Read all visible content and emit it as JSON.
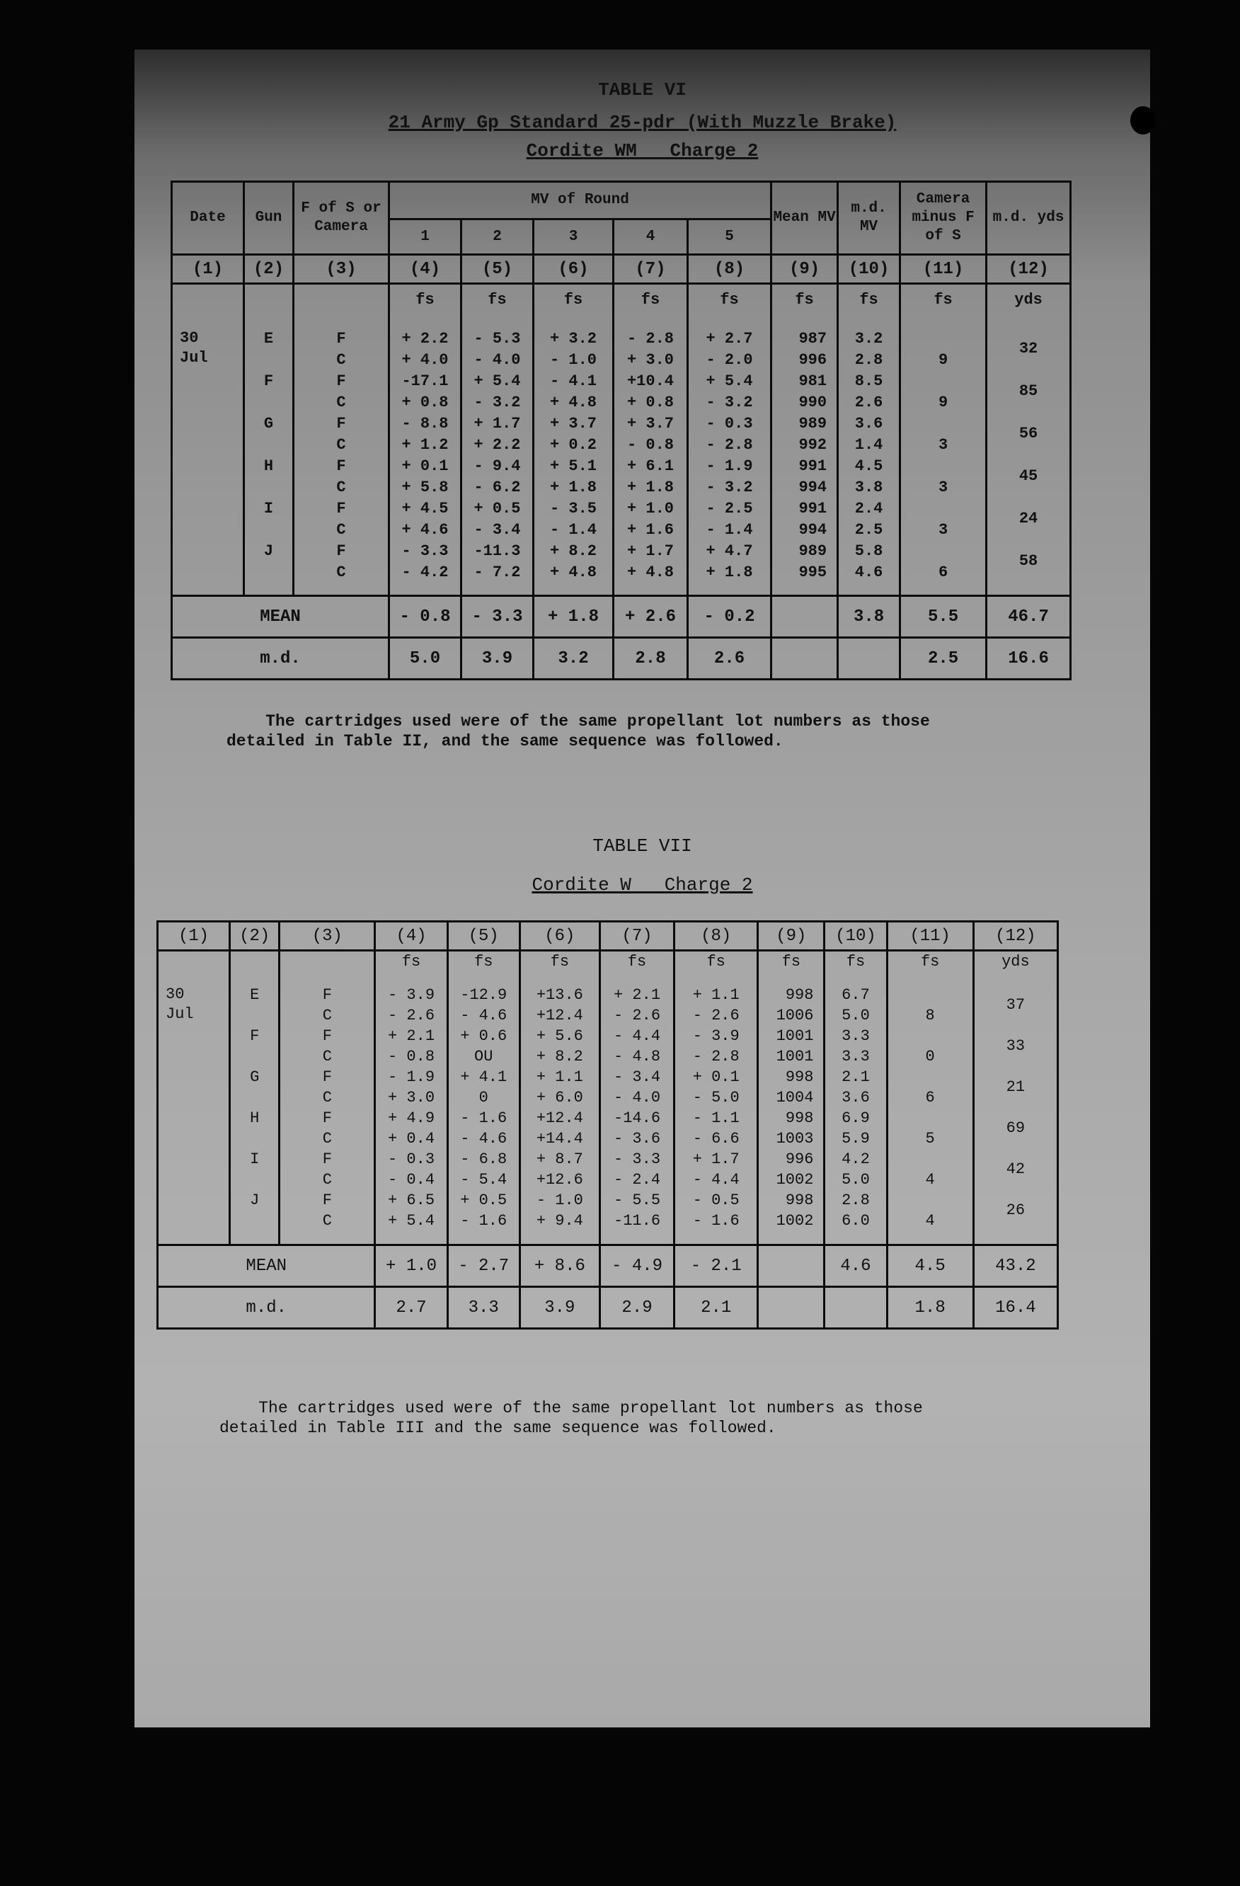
{
  "table6": {
    "label": "TABLE VI",
    "subtitle": "21 Army Gp Standard 25-pdr (With Muzzle Brake)",
    "cordite": "Cordite WM   Charge 2",
    "headers": {
      "date": "Date",
      "gun": "Gun",
      "fofs": "F of S or Camera",
      "mv_group": "MV of Round",
      "rounds": [
        "1",
        "2",
        "3",
        "4",
        "5"
      ],
      "mean_mv": "Mean MV",
      "md_mv": "m.d. MV",
      "camera": "Camera minus F of S",
      "md_yds": "m.d. yds"
    },
    "col_numbers": [
      "(1)",
      "(2)",
      "(3)",
      "(4)",
      "(5)",
      "(6)",
      "(7)",
      "(8)",
      "(9)",
      "(10)",
      "(11)",
      "(12)"
    ],
    "units": [
      "fs",
      "fs",
      "fs",
      "fs",
      "fs",
      "fs",
      "fs",
      "fs",
      "yds"
    ],
    "date": "30\nJul",
    "rows": [
      {
        "gun": "E",
        "fc": "F",
        "r": [
          "+ 2.2",
          "- 5.3",
          "+ 3.2",
          "- 2.8",
          "+ 2.7"
        ],
        "mean": "987",
        "md": "3.2",
        "cam": "",
        "yds": "32"
      },
      {
        "gun": "",
        "fc": "C",
        "r": [
          "+ 4.0",
          "- 4.0",
          "- 1.0",
          "+ 3.0",
          "- 2.0"
        ],
        "mean": "996",
        "md": "2.8",
        "cam": "9",
        "yds": ""
      },
      {
        "gun": "F",
        "fc": "F",
        "r": [
          "-17.1",
          "+ 5.4",
          "- 4.1",
          "+10.4",
          "+ 5.4"
        ],
        "mean": "981",
        "md": "8.5",
        "cam": "",
        "yds": "85"
      },
      {
        "gun": "",
        "fc": "C",
        "r": [
          "+ 0.8",
          "- 3.2",
          "+ 4.8",
          "+ 0.8",
          "- 3.2"
        ],
        "mean": "990",
        "md": "2.6",
        "cam": "9",
        "yds": ""
      },
      {
        "gun": "G",
        "fc": "F",
        "r": [
          "- 8.8",
          "+ 1.7",
          "+ 3.7",
          "+ 3.7",
          "- 0.3"
        ],
        "mean": "989",
        "md": "3.6",
        "cam": "",
        "yds": "56"
      },
      {
        "gun": "",
        "fc": "C",
        "r": [
          "+ 1.2",
          "+ 2.2",
          "+ 0.2",
          "- 0.8",
          "- 2.8"
        ],
        "mean": "992",
        "md": "1.4",
        "cam": "3",
        "yds": ""
      },
      {
        "gun": "H",
        "fc": "F",
        "r": [
          "+ 0.1",
          "- 9.4",
          "+ 5.1",
          "+ 6.1",
          "- 1.9"
        ],
        "mean": "991",
        "md": "4.5",
        "cam": "",
        "yds": "45"
      },
      {
        "gun": "",
        "fc": "C",
        "r": [
          "+ 5.8",
          "- 6.2",
          "+ 1.8",
          "+ 1.8",
          "- 3.2"
        ],
        "mean": "994",
        "md": "3.8",
        "cam": "3",
        "yds": ""
      },
      {
        "gun": "I",
        "fc": "F",
        "r": [
          "+ 4.5",
          "+ 0.5",
          "- 3.5",
          "+ 1.0",
          "- 2.5"
        ],
        "mean": "991",
        "md": "2.4",
        "cam": "",
        "yds": "24"
      },
      {
        "gun": "",
        "fc": "C",
        "r": [
          "+ 4.6",
          "- 3.4",
          "- 1.4",
          "+ 1.6",
          "- 1.4"
        ],
        "mean": "994",
        "md": "2.5",
        "cam": "3",
        "yds": ""
      },
      {
        "gun": "J",
        "fc": "F",
        "r": [
          "- 3.3",
          "-11.3",
          "+ 8.2",
          "+ 1.7",
          "+ 4.7"
        ],
        "mean": "989",
        "md": "5.8",
        "cam": "",
        "yds": "58"
      },
      {
        "gun": "",
        "fc": "C",
        "r": [
          "- 4.2",
          "- 7.2",
          "+ 4.8",
          "+ 4.8",
          "+ 1.8"
        ],
        "mean": "995",
        "md": "4.6",
        "cam": "6",
        "yds": ""
      }
    ],
    "mean_row": {
      "label": "MEAN",
      "r": [
        "- 0.8",
        "- 3.3",
        "+ 1.8",
        "+ 2.6",
        "- 0.2"
      ],
      "mean": "",
      "md": "3.8",
      "cam": "5.5",
      "yds": "46.7"
    },
    "md_row": {
      "label": "m.d.",
      "r": [
        "5.0",
        "3.9",
        "3.2",
        "2.8",
        "2.6"
      ],
      "mean": "",
      "md": "",
      "cam": "2.5",
      "yds": "16.6"
    },
    "note": "    The cartridges used were of the same propellant lot numbers as those\ndetailed in Table II, and the same sequence was followed."
  },
  "table7": {
    "label": "TABLE VII",
    "cordite": "Cordite W   Charge 2",
    "col_numbers": [
      "(1)",
      "(2)",
      "(3)",
      "(4)",
      "(5)",
      "(6)",
      "(7)",
      "(8)",
      "(9)",
      "(10)",
      "(11)",
      "(12)"
    ],
    "units": [
      "fs",
      "fs",
      "fs",
      "fs",
      "fs",
      "fs",
      "fs",
      "fs",
      "yds"
    ],
    "date": "30\nJul",
    "rows": [
      {
        "gun": "E",
        "fc": "F",
        "r": [
          "- 3.9",
          "-12.9",
          "+13.6",
          "+ 2.1",
          "+ 1.1"
        ],
        "mean": "998",
        "md": "6.7",
        "cam": "",
        "yds": "37"
      },
      {
        "gun": "",
        "fc": "C",
        "r": [
          "- 2.6",
          "- 4.6",
          "+12.4",
          "- 2.6",
          "- 2.6"
        ],
        "mean": "1006",
        "md": "5.0",
        "cam": "8",
        "yds": ""
      },
      {
        "gun": "F",
        "fc": "F",
        "r": [
          "+ 2.1",
          "+ 0.6",
          "+ 5.6",
          "- 4.4",
          "- 3.9"
        ],
        "mean": "1001",
        "md": "3.3",
        "cam": "",
        "yds": "33"
      },
      {
        "gun": "",
        "fc": "C",
        "r": [
          "- 0.8",
          "OU",
          "+ 8.2",
          "- 4.8",
          "- 2.8"
        ],
        "mean": "1001",
        "md": "3.3",
        "cam": "0",
        "yds": ""
      },
      {
        "gun": "G",
        "fc": "F",
        "r": [
          "- 1.9",
          "+ 4.1",
          "+ 1.1",
          "- 3.4",
          "+ 0.1"
        ],
        "mean": "998",
        "md": "2.1",
        "cam": "",
        "yds": "21"
      },
      {
        "gun": "",
        "fc": "C",
        "r": [
          "+ 3.0",
          "0",
          "+ 6.0",
          "- 4.0",
          "- 5.0"
        ],
        "mean": "1004",
        "md": "3.6",
        "cam": "6",
        "yds": ""
      },
      {
        "gun": "H",
        "fc": "F",
        "r": [
          "+ 4.9",
          "- 1.6",
          "+12.4",
          "-14.6",
          "- 1.1"
        ],
        "mean": "998",
        "md": "6.9",
        "cam": "",
        "yds": "69"
      },
      {
        "gun": "",
        "fc": "C",
        "r": [
          "+ 0.4",
          "- 4.6",
          "+14.4",
          "- 3.6",
          "- 6.6"
        ],
        "mean": "1003",
        "md": "5.9",
        "cam": "5",
        "yds": ""
      },
      {
        "gun": "I",
        "fc": "F",
        "r": [
          "- 0.3",
          "- 6.8",
          "+ 8.7",
          "- 3.3",
          "+ 1.7"
        ],
        "mean": "996",
        "md": "4.2",
        "cam": "",
        "yds": "42"
      },
      {
        "gun": "",
        "fc": "C",
        "r": [
          "- 0.4",
          "- 5.4",
          "+12.6",
          "- 2.4",
          "- 4.4"
        ],
        "mean": "1002",
        "md": "5.0",
        "cam": "4",
        "yds": ""
      },
      {
        "gun": "J",
        "fc": "F",
        "r": [
          "+ 6.5",
          "+ 0.5",
          "- 1.0",
          "- 5.5",
          "- 0.5"
        ],
        "mean": "998",
        "md": "2.8",
        "cam": "",
        "yds": "26"
      },
      {
        "gun": "",
        "fc": "C",
        "r": [
          "+ 5.4",
          "- 1.6",
          "+ 9.4",
          "-11.6",
          "- 1.6"
        ],
        "mean": "1002",
        "md": "6.0",
        "cam": "4",
        "yds": ""
      }
    ],
    "mean_row": {
      "label": "MEAN",
      "r": [
        "+ 1.0",
        "- 2.7",
        "+ 8.6",
        "- 4.9",
        "- 2.1"
      ],
      "mean": "",
      "md": "4.6",
      "cam": "4.5",
      "yds": "43.2"
    },
    "md_row": {
      "label": "m.d.",
      "r": [
        "2.7",
        "3.3",
        "3.9",
        "2.9",
        "2.1"
      ],
      "mean": "",
      "md": "",
      "cam": "1.8",
      "yds": "16.4"
    },
    "note": "    The cartridges used were of the same propellant lot numbers as those\ndetailed in Table III and the same sequence was followed."
  }
}
